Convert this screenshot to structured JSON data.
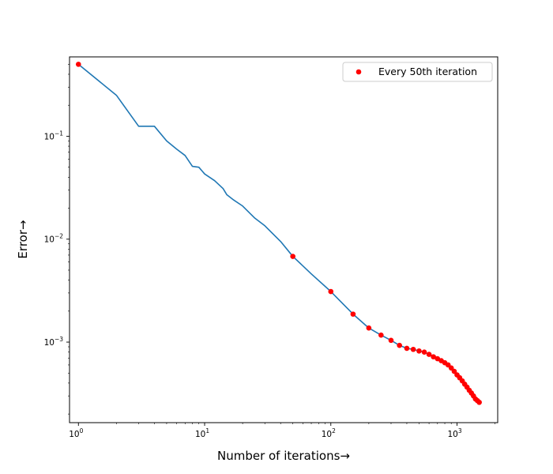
{
  "chart_data": {
    "type": "line",
    "title": "",
    "xlabel": "Number of iterations→",
    "ylabel": "Error→",
    "xscale": "log",
    "yscale": "log",
    "xlim": [
      0.85,
      2100
    ],
    "ylim": [
      0.000165,
      0.59
    ],
    "grid": false,
    "legend_placement": "top-right",
    "x_ticks": [
      {
        "value": 1,
        "base": "10",
        "exp": "0"
      },
      {
        "value": 10,
        "base": "10",
        "exp": "1"
      },
      {
        "value": 100,
        "base": "10",
        "exp": "2"
      },
      {
        "value": 1000,
        "base": "10",
        "exp": "3"
      }
    ],
    "y_ticks": [
      {
        "value": 0.1,
        "base": "10",
        "exp": "−1"
      },
      {
        "value": 0.01,
        "base": "10",
        "exp": "−2"
      },
      {
        "value": 0.001,
        "base": "10",
        "exp": "−3"
      }
    ],
    "series": [
      {
        "kind": "line",
        "color": "#1f77b4",
        "x": [
          1,
          2,
          3,
          4,
          5,
          6,
          7,
          8,
          9,
          10,
          12,
          14,
          15,
          17,
          20,
          25,
          30,
          40,
          50,
          70,
          100,
          150,
          200,
          250,
          300,
          350,
          400,
          450,
          500,
          550,
          600,
          650,
          700,
          750,
          800,
          850,
          900,
          950,
          1000,
          1050,
          1100,
          1150,
          1200,
          1250,
          1300,
          1350,
          1400,
          1450,
          1500
        ],
        "y": [
          0.5,
          0.25,
          0.125,
          0.125,
          0.09,
          0.075,
          0.065,
          0.051,
          0.05,
          0.043,
          0.037,
          0.031,
          0.027,
          0.024,
          0.021,
          0.016,
          0.0135,
          0.0095,
          0.0068,
          0.0046,
          0.0031,
          0.00187,
          0.00137,
          0.00117,
          0.00104,
          0.00093,
          0.00087,
          0.00085,
          0.00082,
          0.0008,
          0.00076,
          0.00072,
          0.00069,
          0.00066,
          0.00063,
          0.0006,
          0.00056,
          0.00052,
          0.00048,
          0.00045,
          0.00042,
          0.00039,
          0.000365,
          0.00034,
          0.00032,
          0.0003,
          0.00028,
          0.00027,
          0.00026
        ]
      },
      {
        "kind": "scatter",
        "name": "Every 50th iteration",
        "color": "#ff0000",
        "x": [
          1,
          50,
          100,
          150,
          200,
          250,
          300,
          350,
          400,
          450,
          500,
          550,
          600,
          650,
          700,
          750,
          800,
          850,
          900,
          950,
          1000,
          1050,
          1100,
          1150,
          1200,
          1250,
          1300,
          1350,
          1400,
          1450,
          1500
        ],
        "y": [
          0.5,
          0.0068,
          0.0031,
          0.00187,
          0.00137,
          0.00117,
          0.00104,
          0.00093,
          0.00087,
          0.00085,
          0.00082,
          0.0008,
          0.00076,
          0.00072,
          0.00069,
          0.00066,
          0.00063,
          0.0006,
          0.00056,
          0.00052,
          0.00048,
          0.00045,
          0.00042,
          0.00039,
          0.000365,
          0.00034,
          0.00032,
          0.0003,
          0.00028,
          0.00027,
          0.00026
        ]
      }
    ]
  }
}
